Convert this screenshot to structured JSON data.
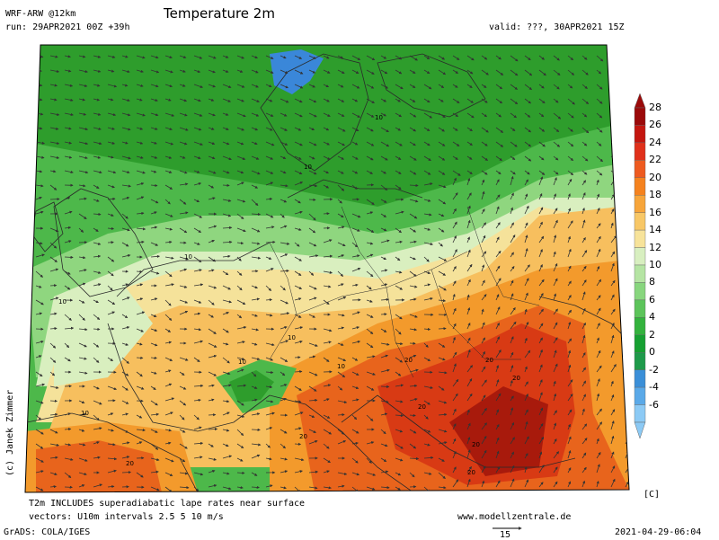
{
  "header": {
    "model": "WRF-ARW @12km",
    "run": "run: 29APR2021 00Z +39h",
    "title": "Temperature 2m",
    "valid": "valid: ???, 30APR2021 15Z"
  },
  "footer": {
    "note1": "T2m INCLUDES superadiabatic lape rates near surface",
    "note2": "vectors: U10m intervals 2.5 5 10 m/s",
    "website": "www.modellzentrale.de",
    "grads": "GrADS: COLA/IGES",
    "timestamp": "2021-04-29-06:04",
    "vector_scale": "15",
    "unit": "[C]",
    "copyright": "(c) Janek Zimmer"
  },
  "colorbar": {
    "levels": [
      "28",
      "26",
      "24",
      "22",
      "20",
      "18",
      "16",
      "14",
      "12",
      "10",
      "8",
      "6",
      "4",
      "2",
      "0",
      "-2",
      "-4",
      "-6"
    ],
    "colors": [
      "#9b0a0a",
      "#c4160f",
      "#e0301a",
      "#ee5a1f",
      "#f5821e",
      "#f7a53a",
      "#f8c766",
      "#f7e39a",
      "#d8efc0",
      "#b5e4a3",
      "#88d67e",
      "#5cc45a",
      "#33b23d",
      "#16a031",
      "#1e9a4a",
      "#3b8fd8",
      "#5aa9e8",
      "#8ccaf5"
    ]
  },
  "contour_labels": [
    "10",
    "10",
    "10",
    "10",
    "10",
    "10",
    "10",
    "10",
    "20",
    "20",
    "20",
    "20",
    "20",
    "20",
    "20",
    "20"
  ],
  "colors": {
    "green_dark": "#2e9d2c",
    "green": "#4db84a",
    "green_light": "#8fd67f",
    "pale": "#d9efbf",
    "yellow": "#f5e29a",
    "orange_light": "#f7bf5e",
    "orange": "#f39a2c",
    "red_orange": "#e8641c",
    "red": "#d83a14",
    "dark_red": "#a81a0c",
    "blue": "#3a87d9",
    "land_line": "#2a2a2a"
  }
}
